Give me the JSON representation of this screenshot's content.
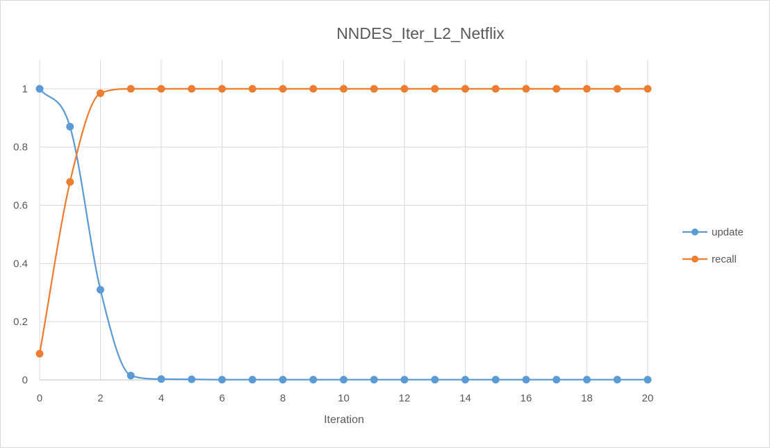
{
  "chart_data": {
    "type": "line",
    "title": "NNDES_Iter_L2_Netflix",
    "xlabel": "Iteration",
    "ylabel": "",
    "x": [
      0,
      1,
      2,
      3,
      4,
      5,
      6,
      7,
      8,
      9,
      10,
      11,
      12,
      13,
      14,
      15,
      16,
      17,
      18,
      19,
      20
    ],
    "xticks": [
      0,
      2,
      4,
      6,
      8,
      10,
      12,
      14,
      16,
      18,
      20
    ],
    "yticks": [
      0,
      0.2,
      0.4,
      0.6,
      0.8,
      1
    ],
    "xlim": [
      0,
      20
    ],
    "ylim": [
      0,
      1.1
    ],
    "grid": true,
    "legend_position": "right",
    "smooth": true,
    "series": [
      {
        "name": "update",
        "color": "#5B9BD5",
        "values": [
          1.0,
          0.87,
          0.31,
          0.015,
          0.003,
          0.002,
          0.001,
          0.001,
          0.001,
          0.001,
          0.001,
          0.001,
          0.001,
          0.001,
          0.001,
          0.001,
          0.001,
          0.001,
          0.001,
          0.001,
          0.001
        ]
      },
      {
        "name": "recall",
        "color": "#ED7D31",
        "values": [
          0.09,
          0.68,
          0.985,
          1.0,
          1.0,
          1.0,
          1.0,
          1.0,
          1.0,
          1.0,
          1.0,
          1.0,
          1.0,
          1.0,
          1.0,
          1.0,
          1.0,
          1.0,
          1.0,
          1.0,
          1.0
        ]
      }
    ]
  }
}
